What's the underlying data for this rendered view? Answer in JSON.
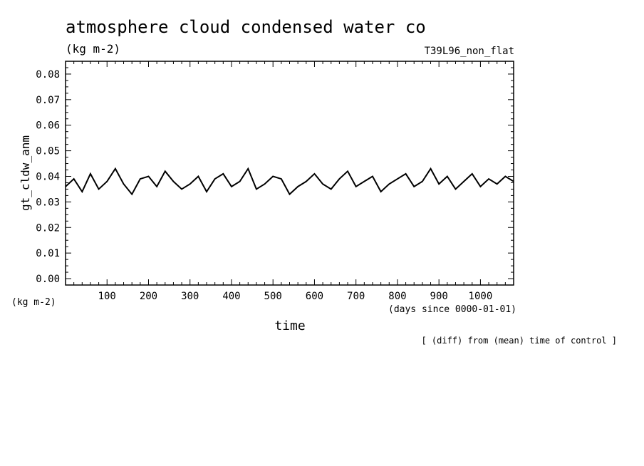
{
  "chart_data": {
    "type": "line",
    "title": "atmosphere cloud condensed water co",
    "subtitle_unit": "(kg m-2)",
    "run_label": "T39L96_non_flat",
    "ylabel": "gt_cldw_anm",
    "y_unit_label": "(kg m-2)",
    "xlabel": "time",
    "x_unit_label": "(days since 0000-01-01)",
    "footer_note": "[ (diff) from (mean) time of control ]",
    "xlim": [
      0,
      1080
    ],
    "ylim": [
      -0.0025,
      0.085
    ],
    "x_ticks": [
      100,
      200,
      300,
      400,
      500,
      600,
      700,
      800,
      900,
      1000
    ],
    "x_tick_labels": [
      "100",
      "200",
      "300",
      "400",
      "500",
      "600",
      "700",
      "800",
      "900",
      "1000"
    ],
    "y_ticks": [
      0.0,
      0.01,
      0.02,
      0.03,
      0.04,
      0.05,
      0.06,
      0.07,
      0.08
    ],
    "y_tick_labels": [
      "0.00",
      "0.01",
      "0.02",
      "0.03",
      "0.04",
      "0.05",
      "0.06",
      "0.07",
      "0.08"
    ],
    "grid": false,
    "legend": "none",
    "line_color": "#000000",
    "series": [
      {
        "x": [
          0,
          20,
          40,
          60,
          80,
          100,
          120,
          140,
          160,
          180,
          200,
          220,
          240,
          260,
          280,
          300,
          320,
          340,
          360,
          380,
          400,
          420,
          440,
          460,
          480,
          500,
          520,
          540,
          560,
          580,
          600,
          620,
          640,
          660,
          680,
          700,
          720,
          740,
          760,
          780,
          800,
          820,
          840,
          860,
          880,
          900,
          920,
          940,
          960,
          980,
          1000,
          1020,
          1040,
          1060,
          1080
        ],
        "values": [
          0.036,
          0.039,
          0.034,
          0.041,
          0.035,
          0.038,
          0.043,
          0.037,
          0.033,
          0.039,
          0.04,
          0.036,
          0.042,
          0.038,
          0.035,
          0.037,
          0.04,
          0.034,
          0.039,
          0.041,
          0.036,
          0.038,
          0.043,
          0.035,
          0.037,
          0.04,
          0.039,
          0.033,
          0.036,
          0.038,
          0.041,
          0.037,
          0.035,
          0.039,
          0.042,
          0.036,
          0.038,
          0.04,
          0.034,
          0.037,
          0.039,
          0.041,
          0.036,
          0.038,
          0.043,
          0.037,
          0.04,
          0.035,
          0.038,
          0.041,
          0.036,
          0.039,
          0.037,
          0.04,
          0.038
        ]
      }
    ]
  }
}
